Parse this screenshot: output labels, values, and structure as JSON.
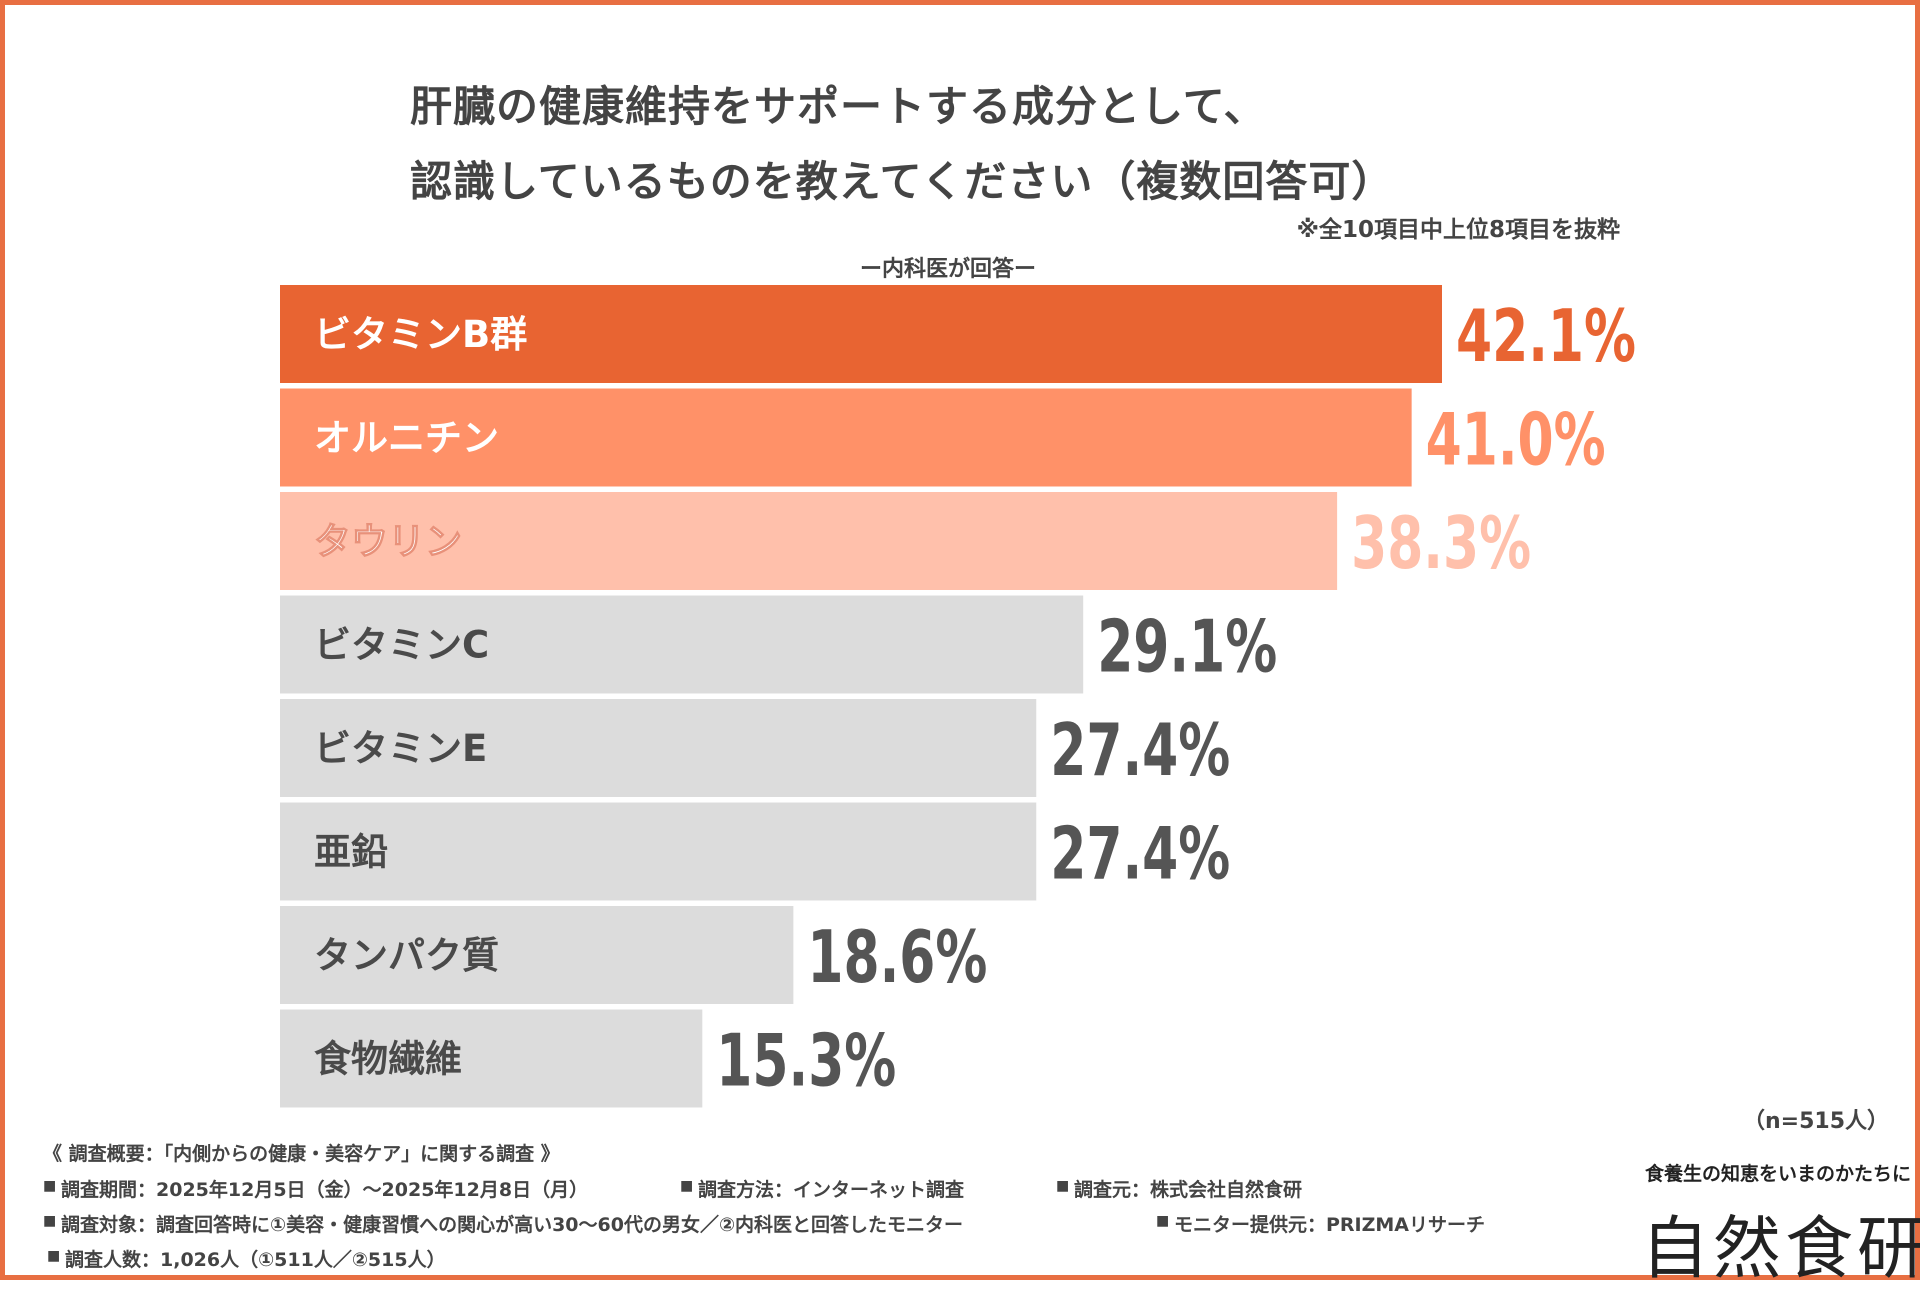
{
  "title": {
    "line1": "肝臓の健康維持をサポートする成分として、",
    "line2": "認識しているものを教えてください（複数回答可）"
  },
  "note": "※全10項目中上位8項目を抜粋",
  "subtitle": "ー内科医が回答ー",
  "sample_size": "（n=515人）",
  "colors": {
    "border": "#e86f42",
    "rank1": "#e86432",
    "rank2": "#ff9168",
    "rank3": "#ffc0ab",
    "other": "#dcdcdc",
    "other_label": "#4a4a4a",
    "value_text": "#555555"
  },
  "chart_data": {
    "type": "bar",
    "orientation": "horizontal",
    "title": "肝臓の健康維持をサポートする成分として、認識しているものを教えてください（複数回答可）",
    "subtitle": "ー内科医が回答ー",
    "categories": [
      "ビタミンB群",
      "オルニチン",
      "タウリン",
      "ビタミンC",
      "ビタミンE",
      "亜鉛",
      "タンパク質",
      "食物繊維"
    ],
    "values": [
      42.1,
      41.0,
      38.3,
      29.1,
      27.4,
      27.4,
      18.6,
      15.3
    ],
    "value_labels": [
      "42.1%",
      "41.0%",
      "38.3%",
      "29.1%",
      "27.4%",
      "27.4%",
      "18.6%",
      "15.3%"
    ],
    "unit": "%",
    "xlim": [
      0,
      42.1
    ],
    "grid": false,
    "legend": "none"
  },
  "footer": {
    "heading": "《 調査概要：「内側からの健康・美容ケア」に関する調査 》",
    "bullet": "■",
    "period": "調査期間：2025年12月5日（金）～2025年12月8日（月）",
    "method": "調査方法：インターネット調査",
    "organizer": "調査元：株式会社自然食研",
    "target": "調査対象：調査回答時に①美容・健康習慣への関心が高い30～60代の男女／②内科医と回答したモニター",
    "provider": "モニター提供元：PRIZMAリサーチ",
    "count": "調査人数：1,026人（①511人／②515人）"
  },
  "logo": {
    "tagline": "食養生の知恵をいまのかたちに",
    "name": "自然食研"
  }
}
